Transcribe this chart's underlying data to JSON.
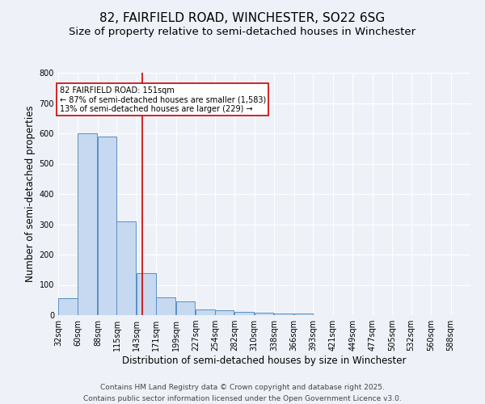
{
  "title1": "82, FAIRFIELD ROAD, WINCHESTER, SO22 6SG",
  "title2": "Size of property relative to semi-detached houses in Winchester",
  "xlabel": "Distribution of semi-detached houses by size in Winchester",
  "ylabel": "Number of semi-detached properties",
  "bin_labels": [
    "32sqm",
    "60sqm",
    "88sqm",
    "115sqm",
    "143sqm",
    "171sqm",
    "199sqm",
    "227sqm",
    "254sqm",
    "282sqm",
    "310sqm",
    "338sqm",
    "366sqm",
    "393sqm",
    "421sqm",
    "449sqm",
    "477sqm",
    "505sqm",
    "532sqm",
    "560sqm",
    "588sqm"
  ],
  "bin_edges": [
    32,
    60,
    88,
    115,
    143,
    171,
    199,
    227,
    254,
    282,
    310,
    338,
    366,
    393,
    421,
    449,
    477,
    505,
    532,
    560,
    588
  ],
  "bar_values": [
    55,
    600,
    590,
    310,
    140,
    58,
    45,
    18,
    17,
    10,
    8,
    5,
    5,
    0,
    0,
    0,
    0,
    0,
    0,
    0
  ],
  "bar_color": "#c6d9f0",
  "bar_edge_color": "#5a8fc2",
  "ylim": [
    0,
    800
  ],
  "xlim_left": 32,
  "xlim_right": 616,
  "property_size": 151,
  "red_line_color": "#cc0000",
  "annotation_text": "82 FAIRFIELD ROAD: 151sqm\n← 87% of semi-detached houses are smaller (1,583)\n13% of semi-detached houses are larger (229) →",
  "annotation_box_color": "#ffffff",
  "annotation_box_edge": "#cc0000",
  "footer1": "Contains HM Land Registry data © Crown copyright and database right 2025.",
  "footer2": "Contains public sector information licensed under the Open Government Licence v3.0.",
  "bg_color": "#eef2f8",
  "title1_fontsize": 11,
  "title2_fontsize": 9.5,
  "axis_label_fontsize": 8.5,
  "tick_fontsize": 7,
  "footer_fontsize": 6.5,
  "annot_fontsize": 7
}
